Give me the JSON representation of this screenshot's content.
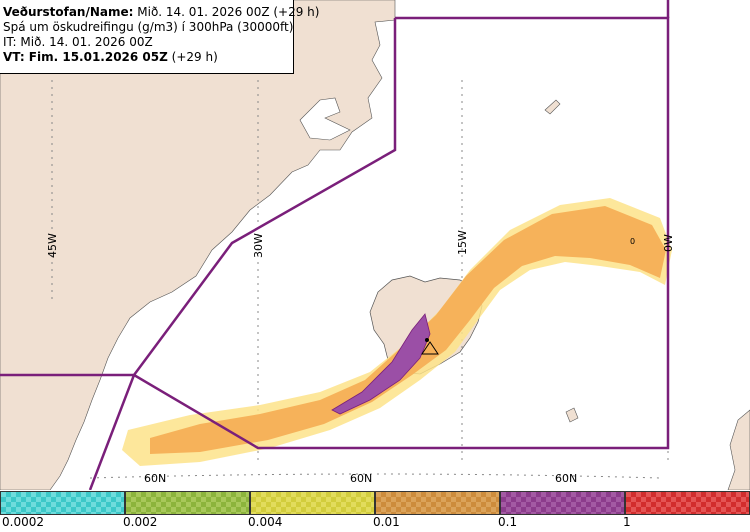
{
  "info": {
    "line1_bold": "Veðurstofan/Name:",
    "line1_rest": " Mið. 14. 01. 2026 00Z (+29 h)",
    "line2": "Spá um öskudreifingu (g/m3) í 300hPa (30000ft)",
    "line3": "IT: Mið. 14. 01. 2026 00Z",
    "line4_bold": "VT: Fim. 15.01.2026 05Z",
    "line4_rest": " (+29 h)"
  },
  "grid_labels": {
    "lon": [
      "45W",
      "30W",
      "15W",
      "0W"
    ],
    "lat": [
      "60N",
      "60N",
      "60N"
    ]
  },
  "marker_label": "0",
  "legend": {
    "ticks": [
      "0.0002",
      "0.002",
      "0.004",
      "0.01",
      "0.1",
      "1"
    ],
    "colors": [
      "#3cc8c8",
      "#8cb43c",
      "#d2cd3c",
      "#cd8c3c",
      "#8c3c8c",
      "#d22d2d"
    ]
  },
  "colors": {
    "land": "#f0e0d2",
    "sea": "#ffffff",
    "plume_light": "#f8c877",
    "plume_mid": "#f4a84a",
    "plume_core": "#9b4fa6",
    "border": "#7a1f7a"
  }
}
